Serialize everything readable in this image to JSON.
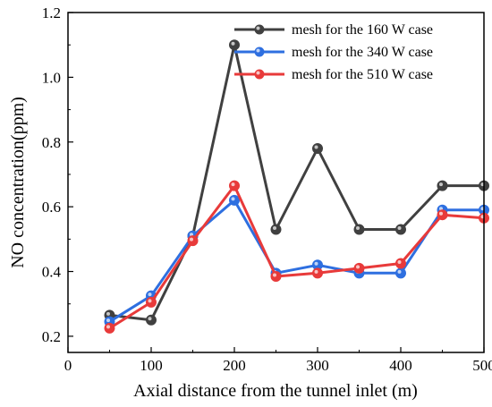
{
  "chart_data": {
    "type": "line",
    "xlabel": "Axial distance from the tunnel inlet (m)",
    "ylabel": "NO concentration(ppm)",
    "xlim": [
      0,
      500
    ],
    "ylim": [
      0.15,
      1.2
    ],
    "xticks": [
      0,
      100,
      200,
      300,
      400,
      500
    ],
    "xtick_labels": [
      "0",
      "100",
      "200",
      "300",
      "400",
      "500"
    ],
    "yticks": [
      0.2,
      0.4,
      0.6,
      0.8,
      1.0,
      1.2
    ],
    "ytick_labels": [
      "0.2",
      "0.4",
      "0.6",
      "0.8",
      "1.0",
      "1.2"
    ],
    "grid": false,
    "legend_position": "top-right",
    "x": [
      50,
      100,
      150,
      200,
      250,
      300,
      350,
      400,
      450,
      500
    ],
    "series": [
      {
        "name": "mesh for the 160 W case",
        "color": "#404040",
        "values": [
          0.265,
          0.25,
          0.51,
          1.1,
          0.53,
          0.78,
          0.53,
          0.53,
          0.665,
          0.665
        ]
      },
      {
        "name": "mesh for the 340 W case",
        "color": "#2e6fe0",
        "values": [
          0.245,
          0.325,
          0.51,
          0.62,
          0.395,
          0.42,
          0.395,
          0.395,
          0.59,
          0.59
        ]
      },
      {
        "name": "mesh for the 510 W case",
        "color": "#e83a3a",
        "values": [
          0.225,
          0.305,
          0.495,
          0.665,
          0.385,
          0.395,
          0.41,
          0.425,
          0.575,
          0.565
        ]
      }
    ]
  }
}
